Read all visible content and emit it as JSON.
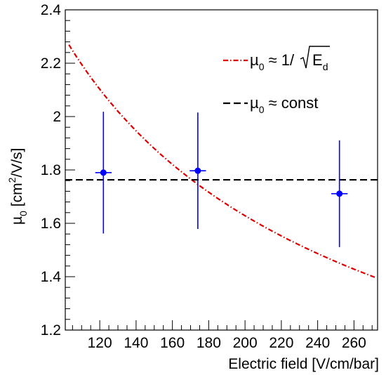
{
  "chart_data": {
    "type": "scatter",
    "xlabel": "Electric field [V/cm/bar]",
    "ylabel": {
      "mu": "µ",
      "sub": "0",
      "rest_a": " [cm",
      "sup": "2",
      "rest_b": "/V/s]"
    },
    "xlim": [
      101,
      273
    ],
    "ylim": [
      1.2,
      2.4
    ],
    "x_ticks": [
      120,
      140,
      160,
      180,
      200,
      220,
      240,
      260
    ],
    "y_ticks": [
      1.2,
      1.4,
      1.6,
      1.8,
      2.0,
      2.2,
      2.4
    ],
    "x_tick_labels": [
      "120",
      "140",
      "160",
      "180",
      "200",
      "220",
      "240",
      "260"
    ],
    "y_tick_labels": [
      "1.2",
      "1.4",
      "1.6",
      "1.8",
      "2",
      "2.2",
      "2.4"
    ],
    "grid": false,
    "series": [
      {
        "type": "errorbar",
        "color": "#0000ff",
        "points": [
          {
            "x": 122,
            "y": 1.79,
            "xerr": 4.5,
            "yerr": 0.228
          },
          {
            "x": 174,
            "y": 1.797,
            "xerr": 4.5,
            "yerr": 0.218
          },
          {
            "x": 252,
            "y": 1.711,
            "xerr": 4.5,
            "yerr": 0.2
          }
        ]
      },
      {
        "type": "curve",
        "formula": "inverse-sqrt",
        "coefficient": 23.03,
        "color": "#dd0000",
        "style": "dash-dot",
        "x_range": [
          103,
          272
        ]
      },
      {
        "type": "hline",
        "y": 1.763,
        "color": "#000000",
        "style": "dashed",
        "x_range": [
          93,
          538
        ]
      }
    ],
    "legend": {
      "position": "top-right",
      "entries": [
        {
          "mu": "µ",
          "sub": "0",
          "text": " ≈ 1/",
          "root_var": "E",
          "root_sub": "d"
        },
        {
          "mu": "µ",
          "sub": "0",
          "text": " ≈ const"
        }
      ]
    }
  }
}
